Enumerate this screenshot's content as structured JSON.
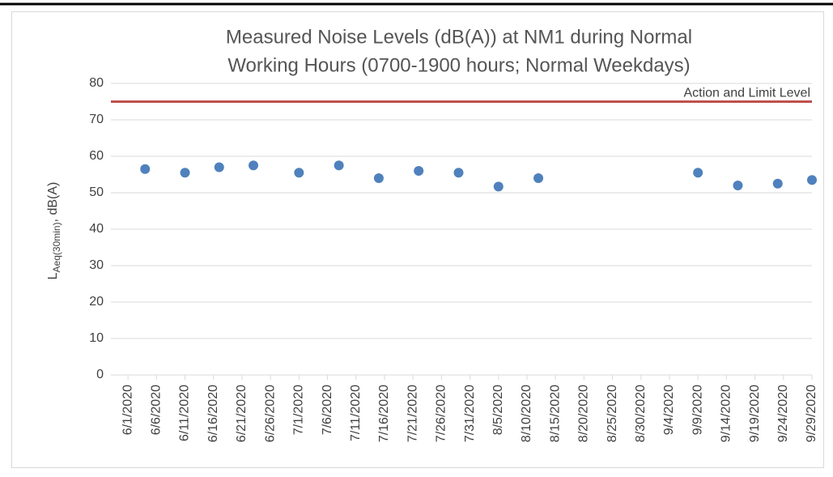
{
  "chart_data": {
    "type": "scatter",
    "title": [
      "Measured Noise Levels (dB(A)) at NM1 during Normal",
      "Working Hours (0700-1900  hours; Normal Weekdays)"
    ],
    "ylabel": [
      "L",
      "Aeq(30min)",
      ", dB(A)"
    ],
    "x": [
      "6/4/2020",
      "6/11/2020",
      "6/17/2020",
      "6/23/2020",
      "7/1/2020",
      "7/8/2020",
      "7/15/2020",
      "7/22/2020",
      "7/29/2020",
      "8/5/2020",
      "8/12/2020",
      "9/9/2020",
      "9/16/2020",
      "9/23/2020",
      "9/29/2020"
    ],
    "series": [
      {
        "name": "NM1",
        "color": "#4f81bd",
        "values": [
          56.5,
          55.5,
          57,
          57.5,
          55.5,
          57.5,
          54,
          56,
          55.5,
          51.7,
          54,
          55.5,
          52,
          52.5,
          53.5
        ]
      }
    ],
    "xlim": [
      "5/29/2020",
      "9/29/2020"
    ],
    "xticks": [
      "6/1/2020",
      "6/6/2020",
      "6/11/2020",
      "6/16/2020",
      "6/21/2020",
      "6/26/2020",
      "7/1/2020",
      "7/6/2020",
      "7/11/2020",
      "7/16/2020",
      "7/21/2020",
      "7/26/2020",
      "7/31/2020",
      "8/5/2020",
      "8/10/2020",
      "8/15/2020",
      "8/20/2020",
      "8/25/2020",
      "8/30/2020",
      "9/4/2020",
      "9/9/2020",
      "9/14/2020",
      "9/19/2020",
      "9/24/2020",
      "9/29/2020"
    ],
    "ylim": [
      0,
      80
    ],
    "yticks": [
      0,
      10,
      20,
      30,
      40,
      50,
      60,
      70,
      80
    ],
    "grid": true,
    "reference_line": {
      "value": 75,
      "label": "Action and Limit Level",
      "color": "#c0504d"
    }
  }
}
